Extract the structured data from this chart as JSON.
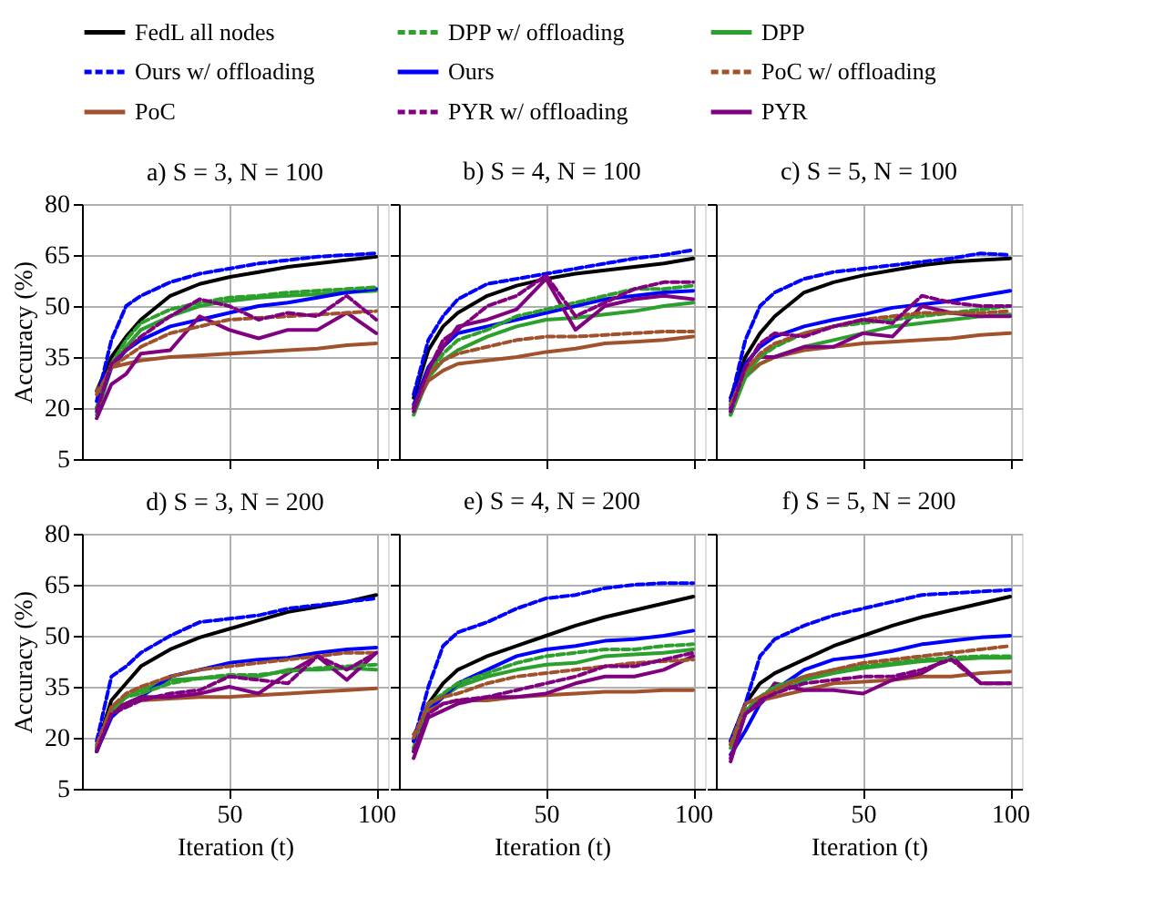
{
  "chart_data": [
    {
      "type": "line",
      "title": "a) S = 3, N = 100",
      "ylabel": "Accuracy (%)",
      "tick_labels": "y",
      "legend": "top",
      "grid": true,
      "xlim": [
        0,
        104
      ],
      "xticks": [
        50,
        100
      ],
      "ylim": [
        5,
        80
      ],
      "yticks": [
        5,
        20,
        35,
        50,
        65,
        80
      ],
      "x": [
        5,
        10,
        15,
        20,
        30,
        40,
        50,
        60,
        70,
        80,
        90,
        100
      ],
      "series": [
        {
          "name": "FedL all nodes",
          "color": "#000000",
          "line_style": "solid",
          "values": [
            25,
            35,
            41,
            46,
            53,
            56.5,
            58.5,
            60,
            61.5,
            62.5,
            63.5,
            64.5
          ]
        },
        {
          "name": "DPP w/ offloading",
          "color": "#2ca02c",
          "line_style": "dashed",
          "values": [
            20,
            33,
            40,
            45,
            49,
            51,
            52.5,
            53,
            54,
            54.5,
            55,
            55.5
          ]
        },
        {
          "name": "DPP",
          "color": "#2ca02c",
          "line_style": "solid",
          "values": [
            18,
            32,
            38,
            43,
            47,
            50,
            51.5,
            52.5,
            53,
            53.5,
            54,
            54.5
          ]
        },
        {
          "name": "Ours w/ offloading",
          "color": "#0000ff",
          "line_style": "dashed",
          "values": [
            22,
            40,
            50,
            53,
            57,
            59.5,
            61,
            62.5,
            63.5,
            64.5,
            65,
            65.5
          ]
        },
        {
          "name": "Ours",
          "color": "#0000ff",
          "line_style": "solid",
          "values": [
            20,
            32,
            37,
            40,
            44,
            46,
            48,
            50,
            51,
            52.5,
            54,
            55
          ]
        },
        {
          "name": "PoC w/ offloading",
          "color": "#a0522d",
          "line_style": "dashed",
          "values": [
            24,
            32,
            35,
            38,
            42,
            44,
            46,
            46.5,
            47,
            47.5,
            48,
            48.5
          ]
        },
        {
          "name": "PoC",
          "color": "#a0522d",
          "line_style": "solid",
          "values": [
            25,
            32,
            33,
            34,
            35,
            35.5,
            36,
            36.5,
            37,
            37.5,
            38.5,
            39
          ]
        },
        {
          "name": "PYR w/ offloading",
          "color": "#800080",
          "line_style": "dashed",
          "values": [
            19,
            33,
            37,
            41,
            47,
            52,
            50,
            46,
            48,
            47,
            53,
            46
          ]
        },
        {
          "name": "PYR",
          "color": "#800080",
          "line_style": "solid",
          "values": [
            17,
            27,
            30,
            36,
            37,
            47,
            43,
            40.5,
            43,
            43,
            48,
            42
          ]
        }
      ]
    },
    {
      "type": "line",
      "title": "b) S = 4, N = 100",
      "tick_labels": false,
      "grid": true,
      "xlim": [
        0,
        104
      ],
      "xticks": [
        50,
        100
      ],
      "ylim": [
        5,
        80
      ],
      "yticks": [
        5,
        20,
        35,
        50,
        65,
        80
      ],
      "x": [
        5,
        10,
        15,
        20,
        30,
        40,
        50,
        60,
        70,
        80,
        90,
        100
      ],
      "series": [
        {
          "name": "FedL all nodes",
          "color": "#000000",
          "line_style": "solid",
          "values": [
            23,
            37,
            44,
            48,
            53,
            56,
            58,
            59.5,
            60.5,
            61.5,
            62.5,
            64
          ]
        },
        {
          "name": "DPP w/ offloading",
          "color": "#2ca02c",
          "line_style": "dashed",
          "values": [
            20,
            30,
            36,
            40,
            43,
            47,
            49,
            51,
            53,
            55,
            55,
            56
          ]
        },
        {
          "name": "DPP",
          "color": "#2ca02c",
          "line_style": "solid",
          "values": [
            18,
            29,
            34,
            37,
            41,
            44,
            46,
            46.5,
            47.5,
            48.5,
            50,
            51
          ]
        },
        {
          "name": "Ours w/ offloading",
          "color": "#0000ff",
          "line_style": "dashed",
          "values": [
            24,
            40,
            47,
            52,
            56.5,
            58,
            59.5,
            61,
            62.5,
            64,
            65,
            66.5
          ]
        },
        {
          "name": "Ours",
          "color": "#0000ff",
          "line_style": "solid",
          "values": [
            21,
            32,
            38,
            42,
            44,
            46,
            48,
            50,
            52,
            53,
            54,
            54.5
          ]
        },
        {
          "name": "PoC w/ offloading",
          "color": "#a0522d",
          "line_style": "dashed",
          "values": [
            20,
            30,
            34,
            36,
            38,
            40,
            41,
            41,
            41.5,
            42,
            42.5,
            42.5
          ]
        },
        {
          "name": "PoC",
          "color": "#a0522d",
          "line_style": "solid",
          "values": [
            20,
            28,
            31,
            33,
            34,
            35,
            36.5,
            37.5,
            39,
            39.5,
            40,
            41
          ]
        },
        {
          "name": "PYR w/ offloading",
          "color": "#800080",
          "line_style": "dashed",
          "values": [
            20,
            31,
            40,
            43,
            50,
            53,
            59,
            47,
            51,
            55,
            57,
            57
          ]
        },
        {
          "name": "PYR",
          "color": "#800080",
          "line_style": "solid",
          "values": [
            19,
            30,
            38,
            44,
            46,
            49,
            58,
            43,
            50,
            52,
            53,
            52
          ]
        }
      ]
    },
    {
      "type": "line",
      "title": "c) S = 5, N = 100",
      "tick_labels": false,
      "grid": true,
      "xlim": [
        0,
        104
      ],
      "xticks": [
        50,
        100
      ],
      "ylim": [
        5,
        80
      ],
      "yticks": [
        5,
        20,
        35,
        50,
        65,
        80
      ],
      "x": [
        5,
        10,
        15,
        20,
        30,
        40,
        50,
        60,
        70,
        80,
        90,
        100
      ],
      "series": [
        {
          "name": "FedL all nodes",
          "color": "#000000",
          "line_style": "solid",
          "values": [
            23,
            35,
            42,
            47,
            54,
            57,
            59,
            60.5,
            62,
            63,
            63.5,
            64
          ]
        },
        {
          "name": "DPP w/ offloading",
          "color": "#2ca02c",
          "line_style": "dashed",
          "values": [
            18,
            30,
            35,
            38,
            42,
            44,
            45,
            46,
            47,
            48,
            49,
            50
          ]
        },
        {
          "name": "DPP",
          "color": "#2ca02c",
          "line_style": "solid",
          "values": [
            18,
            29,
            33,
            35,
            38,
            40,
            42,
            44,
            45,
            46,
            47,
            47.5
          ]
        },
        {
          "name": "Ours w/ offloading",
          "color": "#0000ff",
          "line_style": "dashed",
          "values": [
            22,
            40,
            50,
            54,
            58,
            60,
            61,
            62,
            63,
            64,
            65.5,
            65
          ]
        },
        {
          "name": "Ours",
          "color": "#0000ff",
          "line_style": "solid",
          "values": [
            20,
            33,
            38,
            41,
            44,
            46,
            47.5,
            49.5,
            50.5,
            51.5,
            53,
            54.5
          ]
        },
        {
          "name": "PoC w/ offloading",
          "color": "#a0522d",
          "line_style": "dashed",
          "values": [
            21,
            31,
            36,
            39,
            42,
            44,
            46,
            47,
            48,
            48,
            48,
            48.5
          ]
        },
        {
          "name": "PoC",
          "color": "#a0522d",
          "line_style": "solid",
          "values": [
            21,
            30,
            33,
            35,
            37,
            38,
            39,
            39.5,
            40,
            40.5,
            41.5,
            42
          ]
        },
        {
          "name": "PYR w/ offloading",
          "color": "#800080",
          "line_style": "dashed",
          "values": [
            19,
            32,
            39,
            42,
            41,
            44,
            46,
            45,
            53,
            51,
            50,
            50
          ]
        },
        {
          "name": "PYR",
          "color": "#800080",
          "line_style": "solid",
          "values": [
            19,
            31,
            35,
            35,
            38,
            38,
            42,
            41,
            50,
            48,
            47,
            47
          ]
        }
      ]
    },
    {
      "type": "line",
      "title": "d) S = 3, N = 200",
      "xlabel": "Iteration (t)",
      "ylabel": "Accuracy (%)",
      "grid": true,
      "xlim": [
        0,
        104
      ],
      "xticks": [
        50,
        100
      ],
      "ylim": [
        5,
        80
      ],
      "yticks": [
        5,
        20,
        35,
        50,
        65,
        80
      ],
      "x": [
        5,
        10,
        15,
        20,
        30,
        40,
        50,
        60,
        70,
        80,
        90,
        100
      ],
      "series": [
        {
          "name": "FedL all nodes",
          "color": "#000000",
          "line_style": "solid",
          "values": [
            17,
            31,
            36,
            41,
            46,
            49.5,
            52,
            54.5,
            57,
            58.5,
            60,
            62
          ]
        },
        {
          "name": "DPP w/ offloading",
          "color": "#2ca02c",
          "line_style": "dashed",
          "values": [
            17,
            28,
            32,
            33,
            36,
            37.5,
            38.5,
            38.5,
            39.5,
            40.5,
            41,
            41.5
          ]
        },
        {
          "name": "DPP",
          "color": "#2ca02c",
          "line_style": "solid",
          "values": [
            17,
            28,
            32,
            34,
            37,
            37.5,
            38,
            38,
            40,
            40,
            40.5,
            40
          ]
        },
        {
          "name": "Ours w/ offloading",
          "color": "#0000ff",
          "line_style": "dashed",
          "values": [
            19,
            38,
            41,
            45,
            50,
            54,
            55,
            56,
            58,
            59,
            60,
            61
          ]
        },
        {
          "name": "Ours",
          "color": "#0000ff",
          "line_style": "solid",
          "values": [
            16,
            26,
            30,
            32,
            38,
            40,
            42,
            43,
            43.5,
            45,
            46,
            46.5
          ]
        },
        {
          "name": "PoC w/ offloading",
          "color": "#a0522d",
          "line_style": "dashed",
          "values": [
            18,
            29,
            33,
            35,
            38,
            40,
            41,
            42,
            43,
            44,
            45,
            45
          ]
        },
        {
          "name": "PoC",
          "color": "#a0522d",
          "line_style": "solid",
          "values": [
            17,
            29,
            30,
            31,
            31.5,
            32,
            32,
            32.5,
            33,
            33.5,
            34,
            34.5
          ]
        },
        {
          "name": "PYR w/ offloading",
          "color": "#800080",
          "line_style": "dashed",
          "values": [
            16,
            27,
            29,
            31,
            33,
            34,
            38,
            37,
            36,
            44,
            40,
            45
          ]
        },
        {
          "name": "PYR",
          "color": "#800080",
          "line_style": "solid",
          "values": [
            16,
            28,
            30,
            32,
            32,
            33,
            35,
            33,
            39,
            44,
            37,
            45
          ]
        }
      ]
    },
    {
      "type": "line",
      "title": "e) S = 4, N = 200",
      "xlabel": "Iteration (t)",
      "tick_labels": "x",
      "grid": true,
      "xlim": [
        0,
        104
      ],
      "xticks": [
        50,
        100
      ],
      "ylim": [
        5,
        80
      ],
      "yticks": [
        5,
        20,
        35,
        50,
        65,
        80
      ],
      "x": [
        5,
        10,
        15,
        20,
        30,
        40,
        50,
        60,
        70,
        80,
        90,
        100
      ],
      "series": [
        {
          "name": "FedL all nodes",
          "color": "#000000",
          "line_style": "solid",
          "values": [
            19,
            30,
            36,
            40,
            44,
            47,
            50,
            53,
            55.5,
            57.5,
            59.5,
            61.5
          ]
        },
        {
          "name": "DPP w/ offloading",
          "color": "#2ca02c",
          "line_style": "dashed",
          "values": [
            17,
            30,
            33,
            36,
            39,
            42,
            44,
            45,
            46,
            46,
            47,
            47.5
          ]
        },
        {
          "name": "DPP",
          "color": "#2ca02c",
          "line_style": "solid",
          "values": [
            17,
            29,
            32,
            35,
            38,
            40,
            41.5,
            42,
            44,
            44.5,
            45,
            46
          ]
        },
        {
          "name": "Ours w/ offloading",
          "color": "#0000ff",
          "line_style": "dashed",
          "values": [
            19,
            35,
            47,
            51,
            54,
            58,
            61,
            62,
            64,
            65,
            65.5,
            65.5
          ]
        },
        {
          "name": "Ours",
          "color": "#0000ff",
          "line_style": "solid",
          "values": [
            16,
            28,
            32,
            36,
            40,
            44,
            46,
            47,
            48.5,
            49,
            50,
            51.5
          ]
        },
        {
          "name": "PoC w/ offloading",
          "color": "#a0522d",
          "line_style": "dashed",
          "values": [
            20,
            30,
            32,
            33,
            36,
            38,
            39,
            40,
            41,
            42,
            42.5,
            43
          ]
        },
        {
          "name": "PoC",
          "color": "#a0522d",
          "line_style": "solid",
          "values": [
            21,
            28,
            30,
            31,
            31,
            32,
            32.5,
            33,
            33.5,
            33.5,
            34,
            34
          ]
        },
        {
          "name": "PYR w/ offloading",
          "color": "#800080",
          "line_style": "dashed",
          "values": [
            16,
            27,
            30,
            31,
            32,
            34,
            36,
            38,
            41,
            41,
            43,
            45
          ]
        },
        {
          "name": "PYR",
          "color": "#800080",
          "line_style": "solid",
          "values": [
            14,
            26,
            28,
            30,
            32,
            32,
            33,
            36,
            38,
            38,
            40,
            44
          ]
        }
      ]
    },
    {
      "type": "line",
      "title": "f) S = 5, N = 200",
      "xlabel": "Iteration (t)",
      "tick_labels": "x",
      "grid": true,
      "xlim": [
        0,
        104
      ],
      "xticks": [
        50,
        100
      ],
      "ylim": [
        5,
        80
      ],
      "yticks": [
        5,
        20,
        35,
        50,
        65,
        80
      ],
      "x": [
        5,
        10,
        15,
        20,
        30,
        40,
        50,
        60,
        70,
        80,
        90,
        100
      ],
      "series": [
        {
          "name": "FedL all nodes",
          "color": "#000000",
          "line_style": "solid",
          "values": [
            19,
            30,
            36,
            39,
            43,
            47,
            50,
            53,
            55.5,
            57.5,
            59.5,
            61.5
          ]
        },
        {
          "name": "DPP w/ offloading",
          "color": "#2ca02c",
          "line_style": "dashed",
          "values": [
            18,
            28,
            32,
            35,
            38,
            40,
            41,
            42,
            43,
            43.5,
            44,
            44
          ]
        },
        {
          "name": "DPP",
          "color": "#2ca02c",
          "line_style": "solid",
          "values": [
            17,
            27,
            31,
            33,
            37,
            39,
            40.5,
            41.5,
            42.5,
            43,
            43.5,
            43.5
          ]
        },
        {
          "name": "Ours w/ offloading",
          "color": "#0000ff",
          "line_style": "dashed",
          "values": [
            19,
            30,
            44,
            49,
            53,
            56,
            58,
            60,
            62,
            62.5,
            63,
            63.5
          ]
        },
        {
          "name": "Ours",
          "color": "#0000ff",
          "line_style": "solid",
          "values": [
            15,
            22,
            30,
            34,
            40,
            43,
            44,
            45.5,
            47.5,
            48.5,
            49.5,
            50
          ]
        },
        {
          "name": "PoC w/ offloading",
          "color": "#a0522d",
          "line_style": "dashed",
          "values": [
            18,
            30,
            32,
            34,
            38,
            40,
            42,
            43,
            44,
            45,
            46,
            47
          ]
        },
        {
          "name": "PoC",
          "color": "#a0522d",
          "line_style": "solid",
          "values": [
            19,
            28,
            31,
            32,
            34,
            36,
            36.5,
            37,
            38,
            38,
            39,
            39.5
          ]
        },
        {
          "name": "PYR w/ offloading",
          "color": "#800080",
          "line_style": "dashed",
          "values": [
            14,
            27,
            31,
            33,
            36,
            37,
            38,
            38,
            40,
            43,
            36,
            36
          ]
        },
        {
          "name": "PYR",
          "color": "#800080",
          "line_style": "solid",
          "values": [
            13,
            27,
            30,
            36,
            34,
            34,
            33,
            37,
            39,
            44,
            36,
            36
          ]
        }
      ]
    }
  ]
}
